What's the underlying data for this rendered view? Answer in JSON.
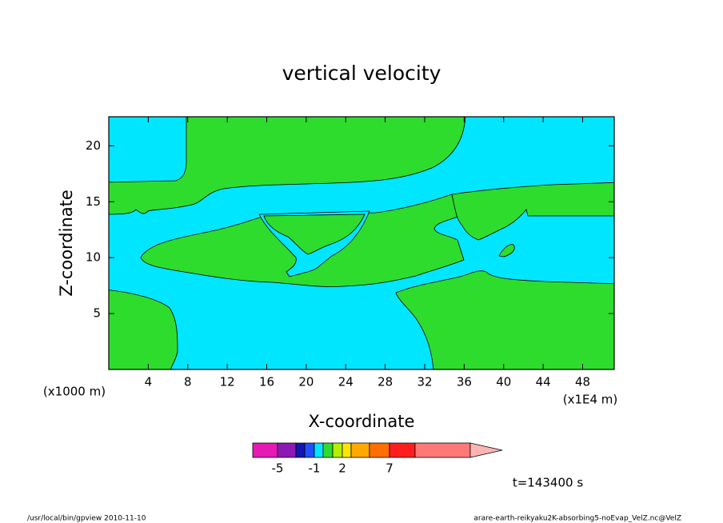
{
  "chart_data": {
    "type": "contour",
    "title": "vertical velocity",
    "x_label": "X-coordinate",
    "y_label": "Z-coordinate",
    "x_unit": "(x1E4 m)",
    "y_unit": "(x1000 m)",
    "xlim": [
      0,
      51.2
    ],
    "ylim": [
      0,
      22.6
    ],
    "xticks": [
      4,
      8,
      12,
      16,
      20,
      24,
      28,
      32,
      36,
      40,
      44,
      48
    ],
    "yticks": [
      5,
      10,
      15,
      20
    ],
    "colorbar": {
      "colors": [
        "#e619b4",
        "#8c19b4",
        "#1414b4",
        "#1e50ff",
        "#00e6ff",
        "#2edc2e",
        "#b4f000",
        "#ffe600",
        "#ffaa00",
        "#ff6e00",
        "#ff1e1e",
        "#ff7878",
        "#ffb4b4"
      ],
      "ticks": [
        -5,
        -1,
        2,
        7
      ]
    },
    "annotation": "t=143400 s",
    "footer_left": "/usr/local/bin/gpview   2010-11-10",
    "footer_right": "arare-earth-reikyaku2K-absorbing5-noEvap_VelZ.nc@VelZ"
  }
}
